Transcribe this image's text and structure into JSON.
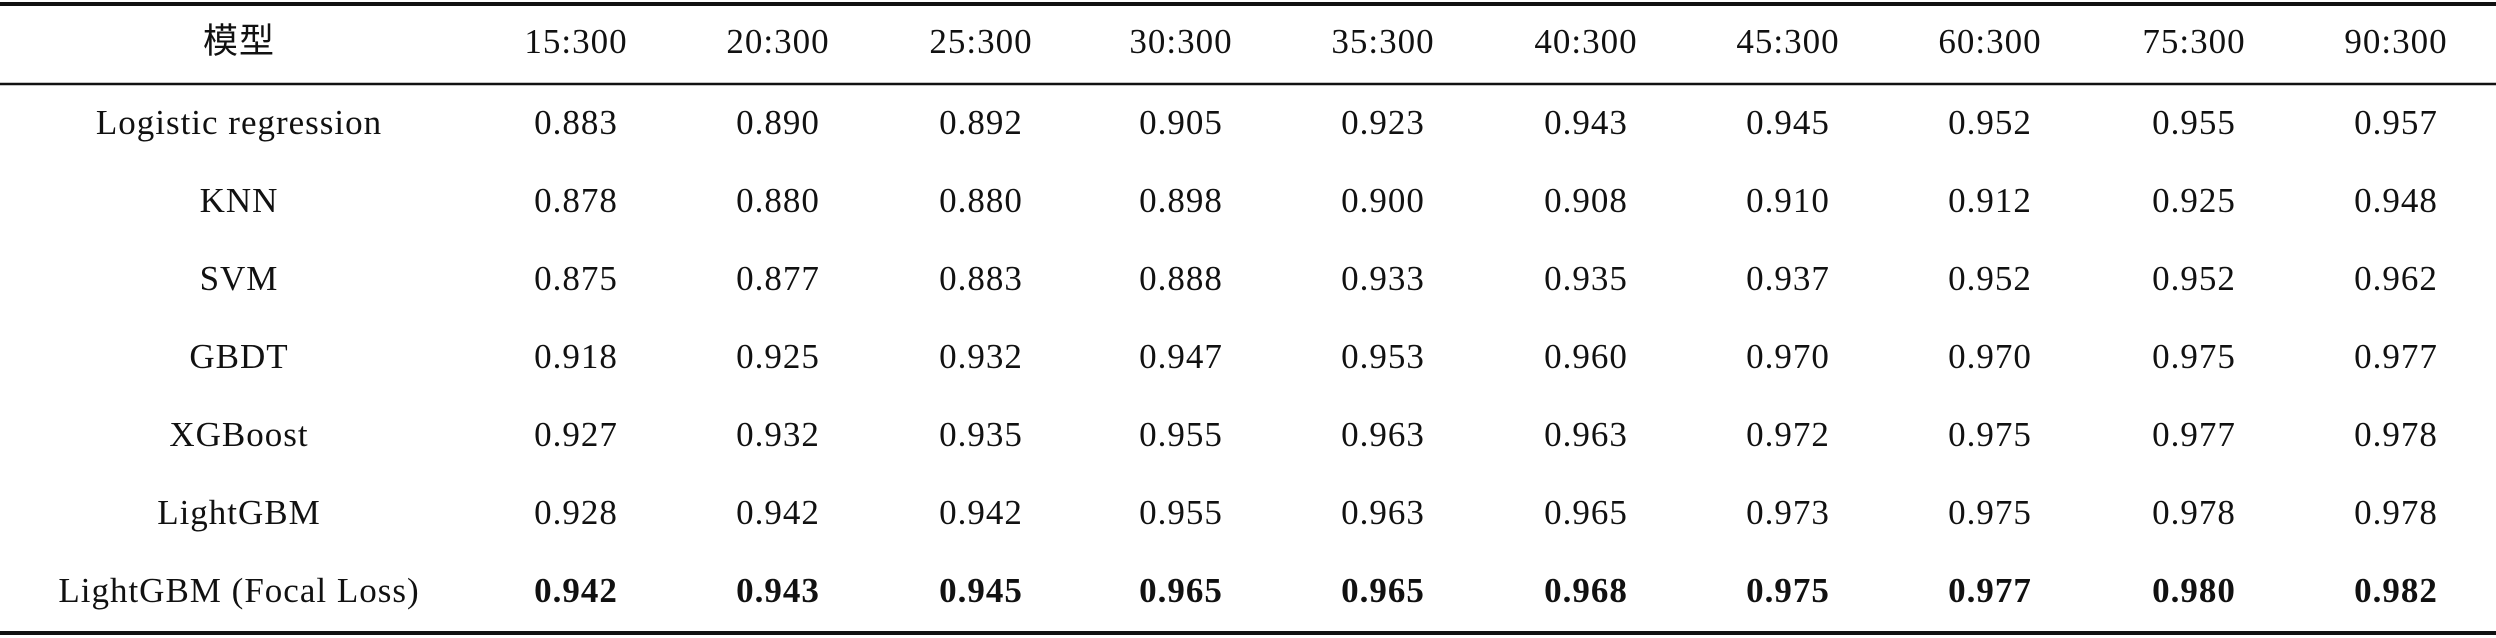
{
  "table": {
    "header": [
      "模型",
      "15:300",
      "20:300",
      "25:300",
      "30:300",
      "35:300",
      "40:300",
      "45:300",
      "60:300",
      "75:300",
      "90:300"
    ],
    "rows": [
      [
        "Logistic regression",
        "0.883",
        "0.890",
        "0.892",
        "0.905",
        "0.923",
        "0.943",
        "0.945",
        "0.952",
        "0.955",
        "0.957"
      ],
      [
        "KNN",
        "0.878",
        "0.880",
        "0.880",
        "0.898",
        "0.900",
        "0.908",
        "0.910",
        "0.912",
        "0.925",
        "0.948"
      ],
      [
        "SVM",
        "0.875",
        "0.877",
        "0.883",
        "0.888",
        "0.933",
        "0.935",
        "0.937",
        "0.952",
        "0.952",
        "0.962"
      ],
      [
        "GBDT",
        "0.918",
        "0.925",
        "0.932",
        "0.947",
        "0.953",
        "0.960",
        "0.970",
        "0.970",
        "0.975",
        "0.977"
      ],
      [
        "XGBoost",
        "0.927",
        "0.932",
        "0.935",
        "0.955",
        "0.963",
        "0.963",
        "0.972",
        "0.975",
        "0.977",
        "0.978"
      ],
      [
        "LightGBM",
        "0.928",
        "0.942",
        "0.942",
        "0.955",
        "0.963",
        "0.965",
        "0.973",
        "0.975",
        "0.978",
        "0.978"
      ],
      [
        "LightGBM (Focal Loss)",
        "0.942",
        "0.943",
        "0.945",
        "0.965",
        "0.965",
        "0.968",
        "0.975",
        "0.977",
        "0.980",
        "0.982"
      ]
    ]
  }
}
